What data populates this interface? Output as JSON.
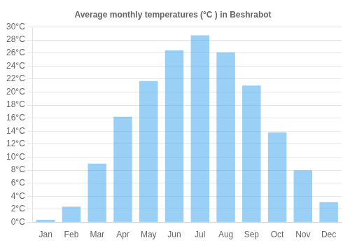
{
  "chart_data": {
    "type": "bar",
    "title": "Average monthly temperatures (°C ) in Beshrabot",
    "categories": [
      "Jan",
      "Feb",
      "Mar",
      "Apr",
      "May",
      "Jun",
      "Jul",
      "Aug",
      "Sep",
      "Oct",
      "Nov",
      "Dec"
    ],
    "values": [
      0.4,
      2.4,
      9.0,
      16.2,
      21.7,
      26.4,
      28.7,
      26.1,
      21.0,
      13.8,
      8.0,
      3.1
    ],
    "ylim": [
      0,
      30
    ],
    "yticks": [
      {
        "value": 0,
        "label": "0°C"
      },
      {
        "value": 2,
        "label": "2°C"
      },
      {
        "value": 4,
        "label": "4°C"
      },
      {
        "value": 6,
        "label": "6°C"
      },
      {
        "value": 8,
        "label": "8°C"
      },
      {
        "value": 10,
        "label": "10°C"
      },
      {
        "value": 12,
        "label": "12°C"
      },
      {
        "value": 14,
        "label": "14°C"
      },
      {
        "value": 16,
        "label": "16°C"
      },
      {
        "value": 18,
        "label": "18°C"
      },
      {
        "value": 20,
        "label": "20°C"
      },
      {
        "value": 22,
        "label": "22°C"
      },
      {
        "value": 24,
        "label": "24°C"
      },
      {
        "value": 26,
        "label": "26°C"
      },
      {
        "value": 28,
        "label": "28°C"
      },
      {
        "value": 30,
        "label": "30°C"
      }
    ],
    "grid": true
  }
}
